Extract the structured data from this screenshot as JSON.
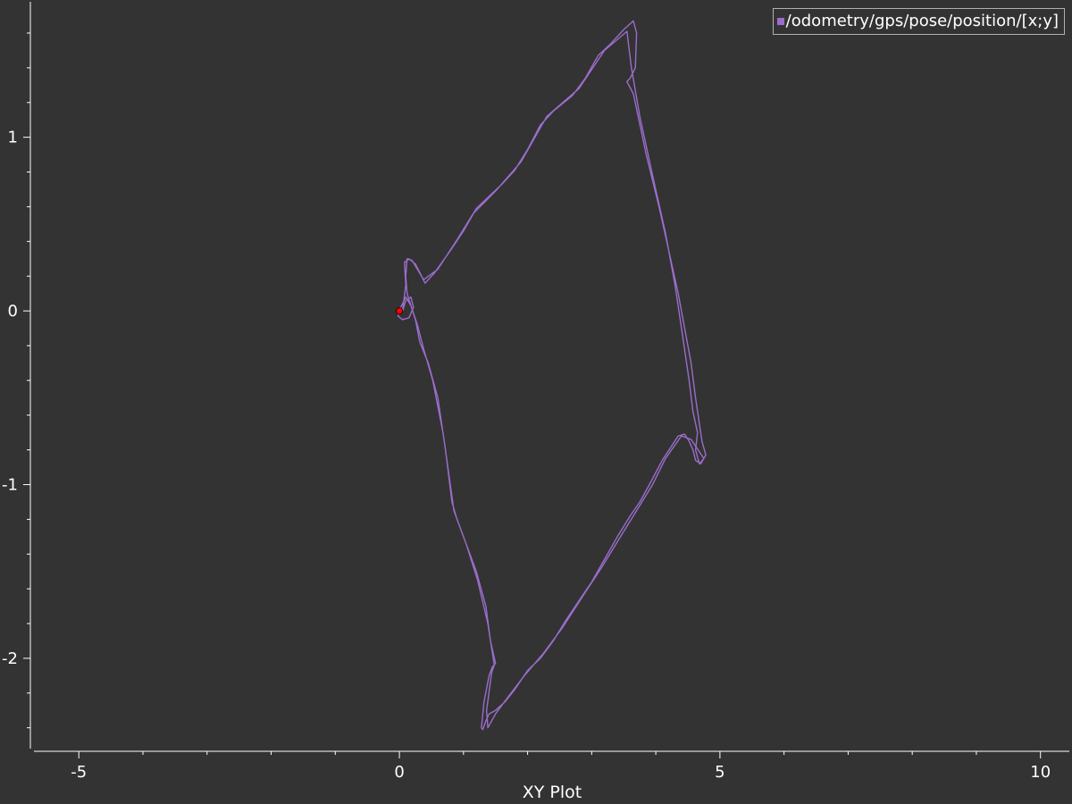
{
  "chart_data": {
    "type": "scatter",
    "title": "",
    "xlabel": "XY Plot",
    "ylabel": "",
    "xlim": [
      -5.7,
      10.45
    ],
    "ylim": [
      -2.52,
      1.78
    ],
    "x_ticks": [
      -5,
      0,
      5,
      10
    ],
    "y_ticks": [
      1,
      0,
      -1,
      -2
    ],
    "grid": false,
    "legend_position": "top-right",
    "series": [
      {
        "name": "/odometry/gps/pose/position/[x;y]",
        "color": "#9a6dcb",
        "points": [
          [
            0.0,
            0.0
          ],
          [
            -0.02,
            -0.03
          ],
          [
            0.05,
            -0.05
          ],
          [
            0.15,
            -0.04
          ],
          [
            0.22,
            0.02
          ],
          [
            0.18,
            0.08
          ],
          [
            0.1,
            0.06
          ],
          [
            0.05,
            0.0
          ],
          [
            0.1,
            0.15
          ],
          [
            0.08,
            0.28
          ],
          [
            0.15,
            0.3
          ],
          [
            0.25,
            0.27
          ],
          [
            0.32,
            0.22
          ],
          [
            0.4,
            0.16
          ],
          [
            0.55,
            0.22
          ],
          [
            0.8,
            0.35
          ],
          [
            1.0,
            0.46
          ],
          [
            1.2,
            0.59
          ],
          [
            1.4,
            0.66
          ],
          [
            1.6,
            0.73
          ],
          [
            1.8,
            0.81
          ],
          [
            2.0,
            0.93
          ],
          [
            2.2,
            1.07
          ],
          [
            2.4,
            1.15
          ],
          [
            2.7,
            1.24
          ],
          [
            2.9,
            1.34
          ],
          [
            3.1,
            1.47
          ],
          [
            3.3,
            1.54
          ],
          [
            3.5,
            1.62
          ],
          [
            3.65,
            1.67
          ],
          [
            3.7,
            1.6
          ],
          [
            3.68,
            1.4
          ],
          [
            3.6,
            1.34
          ],
          [
            3.55,
            1.32
          ],
          [
            3.65,
            1.25
          ],
          [
            3.85,
            0.9
          ],
          [
            4.05,
            0.6
          ],
          [
            4.2,
            0.35
          ],
          [
            4.35,
            0.1
          ],
          [
            4.45,
            -0.1
          ],
          [
            4.55,
            -0.3
          ],
          [
            4.62,
            -0.5
          ],
          [
            4.68,
            -0.65
          ],
          [
            4.72,
            -0.75
          ],
          [
            4.78,
            -0.83
          ],
          [
            4.7,
            -0.88
          ],
          [
            4.62,
            -0.86
          ],
          [
            4.58,
            -0.8
          ],
          [
            4.52,
            -0.75
          ],
          [
            4.45,
            -0.71
          ],
          [
            4.35,
            -0.72
          ],
          [
            4.1,
            -0.86
          ],
          [
            3.9,
            -1.0
          ],
          [
            3.75,
            -1.1
          ],
          [
            3.6,
            -1.18
          ],
          [
            3.4,
            -1.3
          ],
          [
            3.2,
            -1.43
          ],
          [
            3.0,
            -1.56
          ],
          [
            2.8,
            -1.67
          ],
          [
            2.6,
            -1.78
          ],
          [
            2.4,
            -1.9
          ],
          [
            2.2,
            -2.0
          ],
          [
            2.0,
            -2.07
          ],
          [
            1.8,
            -2.18
          ],
          [
            1.65,
            -2.25
          ],
          [
            1.5,
            -2.3
          ],
          [
            1.4,
            -2.32
          ],
          [
            1.35,
            -2.36
          ],
          [
            1.3,
            -2.41
          ],
          [
            1.28,
            -2.4
          ],
          [
            1.32,
            -2.25
          ],
          [
            1.4,
            -2.1
          ],
          [
            1.45,
            -2.05
          ],
          [
            1.5,
            -2.03
          ],
          [
            1.42,
            -1.9
          ],
          [
            1.35,
            -1.7
          ],
          [
            1.2,
            -1.5
          ],
          [
            1.0,
            -1.3
          ],
          [
            0.9,
            -1.2
          ],
          [
            0.82,
            -1.1
          ],
          [
            0.72,
            -0.8
          ],
          [
            0.6,
            -0.5
          ],
          [
            0.45,
            -0.3
          ],
          [
            0.32,
            -0.18
          ],
          [
            0.25,
            -0.05
          ],
          [
            0.12,
            0.1
          ],
          [
            0.1,
            0.2
          ],
          [
            0.12,
            0.3
          ],
          [
            0.2,
            0.29
          ],
          [
            0.28,
            0.24
          ],
          [
            0.38,
            0.18
          ],
          [
            0.6,
            0.24
          ],
          [
            0.9,
            0.41
          ],
          [
            1.15,
            0.56
          ],
          [
            1.5,
            0.69
          ],
          [
            1.9,
            0.86
          ],
          [
            2.3,
            1.12
          ],
          [
            2.8,
            1.28
          ],
          [
            3.2,
            1.5
          ],
          [
            3.55,
            1.61
          ],
          [
            3.62,
            1.4
          ],
          [
            3.75,
            1.12
          ],
          [
            3.95,
            0.78
          ],
          [
            4.15,
            0.45
          ],
          [
            4.3,
            0.15
          ],
          [
            4.42,
            -0.15
          ],
          [
            4.52,
            -0.4
          ],
          [
            4.58,
            -0.58
          ],
          [
            4.65,
            -0.7
          ],
          [
            4.62,
            -0.8
          ],
          [
            4.68,
            -0.88
          ],
          [
            4.75,
            -0.85
          ],
          [
            4.55,
            -0.74
          ],
          [
            4.4,
            -0.72
          ],
          [
            4.15,
            -0.85
          ],
          [
            3.95,
            -1.0
          ],
          [
            3.7,
            -1.15
          ],
          [
            3.45,
            -1.3
          ],
          [
            3.15,
            -1.48
          ],
          [
            2.9,
            -1.62
          ],
          [
            2.55,
            -1.82
          ],
          [
            2.25,
            -1.97
          ],
          [
            1.95,
            -2.1
          ],
          [
            1.7,
            -2.22
          ],
          [
            1.5,
            -2.32
          ],
          [
            1.38,
            -2.4
          ],
          [
            1.36,
            -2.3
          ],
          [
            1.44,
            -2.08
          ],
          [
            1.48,
            -2.04
          ],
          [
            1.38,
            -1.8
          ],
          [
            1.22,
            -1.55
          ],
          [
            1.05,
            -1.35
          ],
          [
            0.85,
            -1.15
          ],
          [
            0.68,
            -0.7
          ],
          [
            0.52,
            -0.4
          ],
          [
            0.38,
            -0.22
          ],
          [
            0.28,
            -0.08
          ],
          [
            0.18,
            0.03
          ],
          [
            0.1,
            0.08
          ],
          [
            0.02,
            0.02
          ],
          [
            0.0,
            0.0
          ]
        ]
      }
    ],
    "marker": {
      "x": 0,
      "y": 0,
      "color": "#ff0000"
    }
  }
}
